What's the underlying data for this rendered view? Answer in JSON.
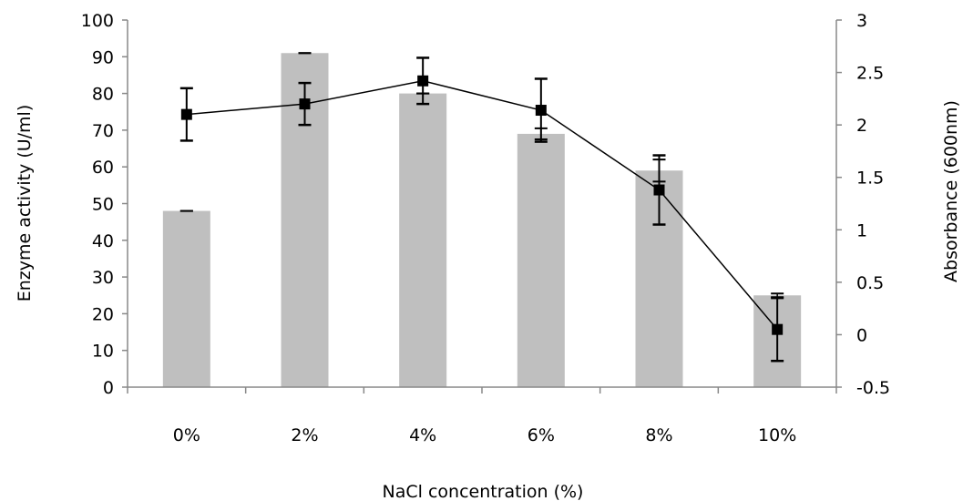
{
  "chart_data": {
    "type": "bar",
    "categories": [
      "0%",
      "2%",
      "4%",
      "6%",
      "8%",
      "10%"
    ],
    "series": [
      {
        "kind": "bar",
        "axis": "left",
        "values": [
          48,
          91,
          80,
          69,
          59,
          25
        ],
        "errors": [
          0,
          0,
          0,
          1.5,
          3,
          0.5
        ],
        "color": "#bfbfbf"
      },
      {
        "kind": "line",
        "axis": "right",
        "values": [
          2.1,
          2.2,
          2.42,
          2.14,
          1.38,
          0.05
        ],
        "errors": [
          0.25,
          0.2,
          0.22,
          0.3,
          0.33,
          0.3
        ],
        "color": "#000000"
      }
    ],
    "xlabel": "NaCl concentration (%)",
    "ylabel": "Enzyme activity (U/ml)",
    "y2label": "Absorbance (600nm)",
    "ylim": [
      0,
      100
    ],
    "y2lim": [
      -0.5,
      3
    ],
    "yticks": [
      "0",
      "10",
      "20",
      "30",
      "40",
      "50",
      "60",
      "70",
      "80",
      "90",
      "100"
    ],
    "y2ticks": [
      "-0.5",
      "0",
      "0.5",
      "1",
      "1.5",
      "2",
      "2.5",
      "3"
    ],
    "grid": false,
    "legend": "none"
  }
}
